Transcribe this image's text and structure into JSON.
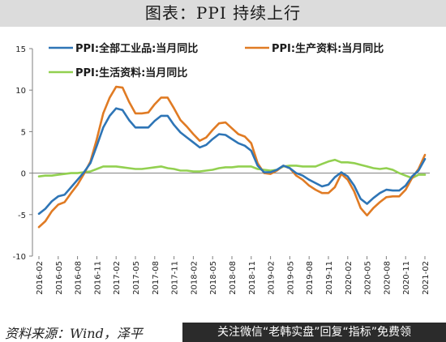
{
  "title": "图表：PPI 持续上行",
  "source_text": "资料来源：Wind，泽平",
  "watermark": {
    "text": "关注微信“老韩实盘”回复“指标”免费领"
  },
  "chart_data": {
    "type": "line",
    "title": "",
    "xlabel": "",
    "ylabel": "",
    "ylim": [
      -10,
      15
    ],
    "yticks": [
      -10,
      -5,
      0,
      5,
      10,
      15
    ],
    "grid": false,
    "legend_position": "top-left",
    "x": [
      "2016-02",
      "2016-03",
      "2016-04",
      "2016-05",
      "2016-06",
      "2016-07",
      "2016-08",
      "2016-09",
      "2016-10",
      "2016-11",
      "2016-12",
      "2017-01",
      "2017-02",
      "2017-03",
      "2017-04",
      "2017-05",
      "2017-06",
      "2017-07",
      "2017-08",
      "2017-09",
      "2017-10",
      "2017-11",
      "2017-12",
      "2018-01",
      "2018-02",
      "2018-03",
      "2018-04",
      "2018-05",
      "2018-06",
      "2018-07",
      "2018-08",
      "2018-09",
      "2018-10",
      "2018-11",
      "2018-12",
      "2019-01",
      "2019-02",
      "2019-03",
      "2019-04",
      "2019-05",
      "2019-06",
      "2019-07",
      "2019-08",
      "2019-09",
      "2019-10",
      "2019-11",
      "2019-12",
      "2020-01",
      "2020-02",
      "2020-03",
      "2020-04",
      "2020-05",
      "2020-06",
      "2020-07",
      "2020-08",
      "2020-09",
      "2020-10",
      "2020-11",
      "2020-12",
      "2021-01",
      "2021-02"
    ],
    "x_tick_labels": [
      "2016-02",
      "2016-05",
      "2016-08",
      "2016-11",
      "2017-02",
      "2017-05",
      "2017-08",
      "2017-11",
      "2018-02",
      "2018-05",
      "2018-08",
      "2018-11",
      "2019-02",
      "2019-05",
      "2019-08",
      "2019-11",
      "2020-02",
      "2020-05",
      "2020-08",
      "2020-11",
      "2021-02"
    ],
    "series": [
      {
        "name": "PPI:全部工业品:当月同比",
        "color": "#2e75b6",
        "values": [
          -4.9,
          -4.3,
          -3.4,
          -2.8,
          -2.6,
          -1.7,
          -0.8,
          0.1,
          1.2,
          3.3,
          5.5,
          6.9,
          7.8,
          7.6,
          6.4,
          5.5,
          5.5,
          5.5,
          6.3,
          6.9,
          6.9,
          5.8,
          4.9,
          4.3,
          3.7,
          3.1,
          3.4,
          4.1,
          4.7,
          4.6,
          4.1,
          3.6,
          3.3,
          2.7,
          0.9,
          0.1,
          0.1,
          0.4,
          0.9,
          0.6,
          0.0,
          -0.3,
          -0.8,
          -1.2,
          -1.6,
          -1.4,
          -0.5,
          0.1,
          -0.4,
          -1.5,
          -3.1,
          -3.7,
          -3.0,
          -2.4,
          -2.0,
          -2.1,
          -2.1,
          -1.5,
          -0.4,
          0.3,
          1.7
        ]
      },
      {
        "name": "PPI:生产资料:当月同比",
        "color": "#e07b24",
        "values": [
          -6.5,
          -5.8,
          -4.6,
          -3.8,
          -3.5,
          -2.4,
          -1.4,
          -0.1,
          1.4,
          4.1,
          7.2,
          9.1,
          10.4,
          10.3,
          8.6,
          7.2,
          7.2,
          7.3,
          8.3,
          9.1,
          9.1,
          7.8,
          6.4,
          5.6,
          4.7,
          3.9,
          4.3,
          5.2,
          6.0,
          6.1,
          5.4,
          4.7,
          4.4,
          3.6,
          1.2,
          0.0,
          -0.1,
          0.3,
          0.9,
          0.6,
          -0.3,
          -0.8,
          -1.5,
          -2.0,
          -2.4,
          -2.4,
          -1.7,
          -0.1,
          -0.8,
          -2.2,
          -4.2,
          -5.1,
          -4.2,
          -3.5,
          -2.9,
          -2.8,
          -2.8,
          -2.0,
          -0.6,
          0.5,
          2.2
        ]
      },
      {
        "name": "PPI:生活资料:当月同比",
        "color": "#92d050",
        "values": [
          -0.4,
          -0.3,
          -0.3,
          -0.2,
          -0.1,
          0.0,
          0.0,
          0.1,
          0.2,
          0.5,
          0.8,
          0.8,
          0.8,
          0.7,
          0.6,
          0.5,
          0.5,
          0.6,
          0.7,
          0.8,
          0.6,
          0.5,
          0.3,
          0.3,
          0.2,
          0.2,
          0.3,
          0.4,
          0.6,
          0.7,
          0.7,
          0.8,
          0.8,
          0.8,
          0.5,
          0.4,
          0.3,
          0.4,
          0.8,
          0.9,
          0.9,
          0.8,
          0.8,
          0.8,
          1.1,
          1.4,
          1.6,
          1.3,
          1.3,
          1.2,
          1.0,
          0.8,
          0.6,
          0.5,
          0.6,
          0.4,
          0.0,
          -0.3,
          -0.6,
          -0.2,
          -0.2
        ]
      }
    ]
  }
}
